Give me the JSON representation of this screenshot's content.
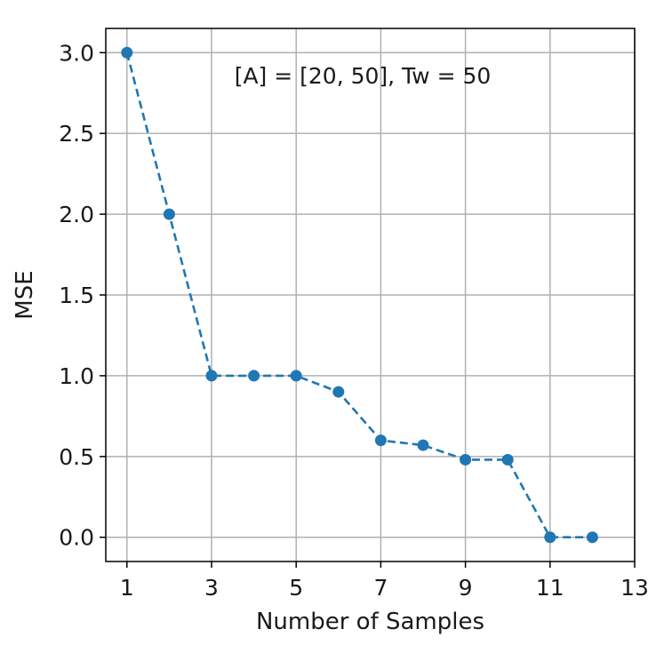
{
  "chart_data": {
    "type": "line",
    "title": "",
    "annotation": "[A] = [20, 50], Tw = 50",
    "xlabel": "Number of Samples",
    "ylabel": "MSE",
    "xlim": [
      0.5,
      13
    ],
    "ylim": [
      -0.15,
      3.15
    ],
    "xticks": [
      1,
      3,
      5,
      7,
      9,
      11,
      13
    ],
    "yticks": [
      0.0,
      0.5,
      1.0,
      1.5,
      2.0,
      2.5,
      3.0
    ],
    "ytick_labels": [
      "0.0",
      "0.5",
      "1.0",
      "1.5",
      "2.0",
      "2.5",
      "3.0"
    ],
    "grid": true,
    "series": [
      {
        "x": [
          1,
          2,
          3,
          4,
          5,
          6,
          7,
          8,
          9,
          10,
          11,
          12
        ],
        "y": [
          3.0,
          2.0,
          1.0,
          1.0,
          1.0,
          0.9,
          0.6,
          0.57,
          0.48,
          0.48,
          0.0,
          0.0
        ],
        "line_style": "dashed",
        "marker": "circle",
        "color": "#1f77b4"
      }
    ]
  }
}
